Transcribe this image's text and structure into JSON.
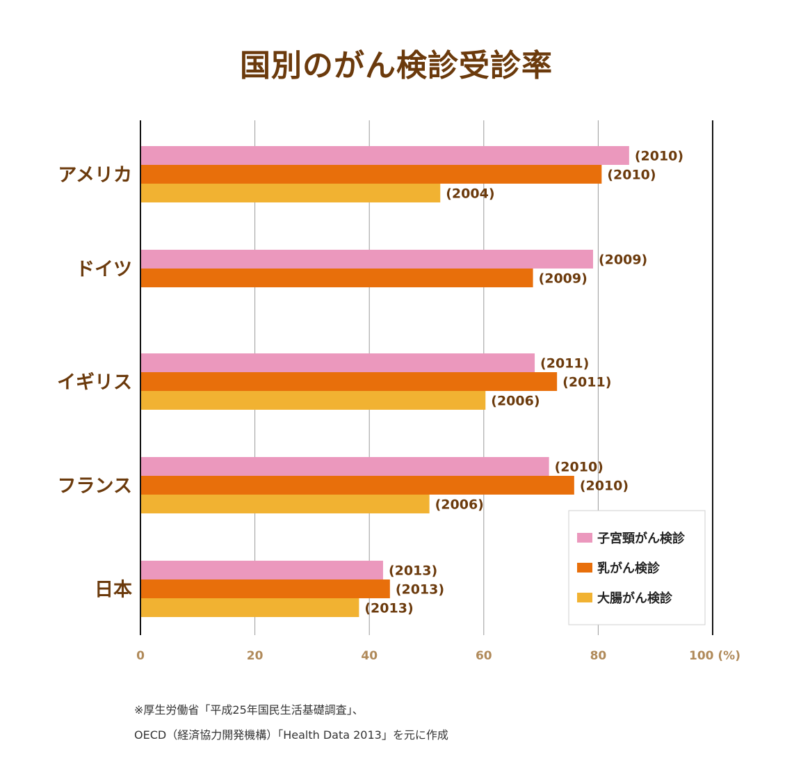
{
  "title": "国別のがん検診受診率",
  "source_note": [
    "※厚生労働省「平成25年国民生活基礎調査」、",
    "OECD（経済協力開発機構）「Health Data 2013」を元に作成"
  ],
  "colors": {
    "cervical": "#eb98bd",
    "breast": "#e86f0b",
    "colorectal": "#f1b232",
    "text_brown": "#6b3a0c",
    "tick_brown": "#b08a5a"
  },
  "chart_data": {
    "type": "bar",
    "orientation": "horizontal",
    "title": "国別のがん検診受診率",
    "categories": [
      "アメリカ",
      "ドイツ",
      "イギリス",
      "フランス",
      "日本"
    ],
    "series": [
      {
        "name": "子宮頸がん検診",
        "color": "#eb98bd",
        "values": [
          85.4,
          79.1,
          68.9,
          71.4,
          42.4
        ],
        "labels": [
          "(2010)",
          "(2009)",
          "(2011)",
          "(2010)",
          "(2013)"
        ]
      },
      {
        "name": "乳がん検診",
        "color": "#e86f0b",
        "values": [
          80.6,
          68.6,
          72.8,
          75.8,
          43.6
        ],
        "labels": [
          "(2010)",
          "(2009)",
          "(2011)",
          "(2010)",
          "(2013)"
        ]
      },
      {
        "name": "大腸がん検診",
        "color": "#f1b232",
        "values": [
          52.4,
          null,
          60.3,
          50.5,
          38.2
        ],
        "labels": [
          "(2004)",
          null,
          "(2006)",
          "(2006)",
          "(2013)"
        ]
      }
    ],
    "xlim": [
      0,
      100
    ],
    "xticks": [
      0,
      20,
      40,
      60,
      80,
      100
    ],
    "xtick_labels": [
      "0",
      "20",
      "40",
      "60",
      "80",
      "100 (%)"
    ],
    "grid": true,
    "legend_position": "bottom-right"
  }
}
